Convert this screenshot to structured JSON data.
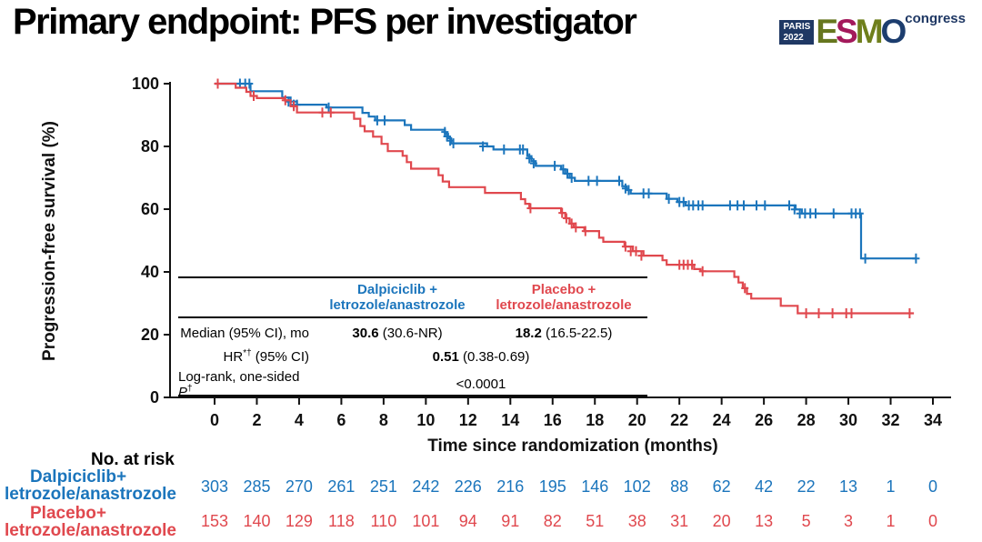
{
  "slide_title": "Primary endpoint: PFS per investigator",
  "logo": {
    "paris_line1": "PARIS",
    "paris_line2": "2022",
    "letters": [
      {
        "ch": "E",
        "color": "#66761F"
      },
      {
        "ch": "S",
        "color": "#A3195B"
      },
      {
        "ch": "M",
        "color": "#6F7F1C"
      },
      {
        "ch": "O",
        "color": "#1C3D6E"
      }
    ],
    "congress": "congress",
    "navy": "#1F3864"
  },
  "chart_data": {
    "type": "line",
    "subtype": "kaplan-meier-step",
    "title": "",
    "xlabel": "Time since randomization (months)",
    "ylabel": "Progression-free survival (%)",
    "xlim": [
      0,
      34
    ],
    "ylim": [
      0,
      100
    ],
    "xticks": [
      0,
      2,
      4,
      6,
      8,
      10,
      12,
      14,
      16,
      18,
      20,
      22,
      24,
      26,
      28,
      30,
      32,
      34
    ],
    "yticks": [
      0,
      20,
      40,
      60,
      80,
      100
    ],
    "grid": false,
    "legend_position": "none",
    "series": [
      {
        "name": "Dalpiciclib + letrozole/anastrozole",
        "color": "#1B75BC",
        "points": [
          [
            0,
            100
          ],
          [
            1.7,
            97.6
          ],
          [
            3.2,
            95.6
          ],
          [
            3.6,
            94.3
          ],
          [
            3.9,
            93.3
          ],
          [
            5.3,
            92.4
          ],
          [
            7.0,
            90.7
          ],
          [
            7.3,
            89.5
          ],
          [
            7.6,
            88.3
          ],
          [
            9.0,
            86.8
          ],
          [
            9.3,
            85.3
          ],
          [
            10.9,
            84.0
          ],
          [
            11.05,
            82.6
          ],
          [
            11.2,
            81.0
          ],
          [
            12.9,
            80.0
          ],
          [
            13.2,
            79.0
          ],
          [
            14.8,
            76.9
          ],
          [
            15.0,
            75.3
          ],
          [
            15.2,
            73.8
          ],
          [
            16.4,
            72.7
          ],
          [
            16.6,
            71.3
          ],
          [
            16.8,
            70.0
          ],
          [
            17.05,
            69.0
          ],
          [
            19.3,
            67.3
          ],
          [
            19.5,
            66.1
          ],
          [
            19.7,
            65.0
          ],
          [
            21.4,
            63.3
          ],
          [
            21.9,
            62.3
          ],
          [
            22.3,
            61.2
          ],
          [
            27.5,
            59.9
          ],
          [
            27.8,
            58.6
          ],
          [
            30.6,
            44.3
          ],
          [
            33.2,
            44.3
          ]
        ],
        "censors": [
          [
            1.2,
            100
          ],
          [
            1.45,
            100
          ],
          [
            1.65,
            100
          ],
          [
            3.5,
            94.3
          ],
          [
            3.75,
            93.3
          ],
          [
            3.9,
            93.3
          ],
          [
            5.4,
            92.4
          ],
          [
            7.7,
            88.3
          ],
          [
            8.05,
            88.3
          ],
          [
            10.9,
            84.6
          ],
          [
            11.0,
            83.2
          ],
          [
            11.15,
            81.8
          ],
          [
            11.3,
            81.0
          ],
          [
            12.7,
            80.0
          ],
          [
            13.7,
            79.0
          ],
          [
            14.45,
            79.0
          ],
          [
            14.6,
            79.0
          ],
          [
            14.9,
            76.2
          ],
          [
            15.1,
            74.6
          ],
          [
            16.1,
            73.8
          ],
          [
            16.5,
            72.7
          ],
          [
            16.7,
            71.3
          ],
          [
            16.9,
            70.0
          ],
          [
            17.7,
            69.0
          ],
          [
            18.1,
            69.0
          ],
          [
            19.15,
            69.0
          ],
          [
            19.45,
            66.6
          ],
          [
            19.6,
            66.1
          ],
          [
            20.3,
            65.0
          ],
          [
            20.55,
            65.0
          ],
          [
            21.5,
            63.3
          ],
          [
            22.0,
            62.3
          ],
          [
            22.2,
            62.3
          ],
          [
            22.45,
            61.2
          ],
          [
            22.65,
            61.2
          ],
          [
            22.9,
            61.2
          ],
          [
            23.1,
            61.2
          ],
          [
            24.4,
            61.2
          ],
          [
            24.75,
            61.2
          ],
          [
            25.05,
            61.2
          ],
          [
            25.65,
            61.2
          ],
          [
            26.05,
            61.2
          ],
          [
            27.2,
            61.2
          ],
          [
            27.45,
            59.9
          ],
          [
            27.7,
            58.6
          ],
          [
            27.95,
            58.6
          ],
          [
            28.2,
            58.6
          ],
          [
            28.45,
            58.6
          ],
          [
            29.3,
            58.6
          ],
          [
            30.15,
            58.6
          ],
          [
            30.35,
            58.6
          ],
          [
            30.55,
            58.6
          ],
          [
            30.8,
            44.3
          ],
          [
            33.2,
            44.3
          ]
        ]
      },
      {
        "name": "Placebo + letrozole/anastrozole",
        "color": "#E0484E",
        "points": [
          [
            0,
            100
          ],
          [
            1.0,
            98.7
          ],
          [
            1.5,
            97.4
          ],
          [
            1.7,
            96.1
          ],
          [
            2.0,
            95.4
          ],
          [
            3.3,
            94.7
          ],
          [
            3.6,
            92.8
          ],
          [
            3.9,
            90.8
          ],
          [
            6.6,
            88.8
          ],
          [
            6.9,
            86.5
          ],
          [
            7.1,
            84.8
          ],
          [
            7.5,
            83.1
          ],
          [
            7.9,
            80.8
          ],
          [
            8.2,
            78.5
          ],
          [
            8.9,
            77.0
          ],
          [
            9.1,
            75.0
          ],
          [
            9.3,
            72.9
          ],
          [
            10.6,
            70.8
          ],
          [
            10.8,
            68.8
          ],
          [
            11.1,
            67.0
          ],
          [
            12.8,
            65.2
          ],
          [
            14.5,
            63.2
          ],
          [
            14.7,
            61.7
          ],
          [
            14.9,
            60.3
          ],
          [
            16.4,
            58.8
          ],
          [
            16.6,
            57.1
          ],
          [
            16.8,
            55.4
          ],
          [
            17.0,
            54.2
          ],
          [
            17.5,
            53.0
          ],
          [
            18.2,
            50.9
          ],
          [
            18.4,
            49.6
          ],
          [
            19.4,
            48.1
          ],
          [
            19.8,
            46.6
          ],
          [
            20.3,
            45.2
          ],
          [
            21.2,
            43.7
          ],
          [
            21.4,
            42.3
          ],
          [
            22.7,
            40.9
          ],
          [
            23.0,
            40.2
          ],
          [
            24.6,
            38.4
          ],
          [
            24.8,
            36.6
          ],
          [
            25.0,
            34.8
          ],
          [
            25.2,
            33.0
          ],
          [
            25.4,
            31.5
          ],
          [
            26.8,
            29.2
          ],
          [
            27.6,
            26.8
          ],
          [
            33.1,
            26.8
          ]
        ],
        "censors": [
          [
            0.15,
            100
          ],
          [
            1.85,
            96.1
          ],
          [
            3.35,
            94.7
          ],
          [
            3.75,
            92.8
          ],
          [
            5.1,
            90.8
          ],
          [
            5.5,
            90.8
          ],
          [
            14.95,
            60.3
          ],
          [
            16.45,
            58.8
          ],
          [
            16.65,
            57.1
          ],
          [
            16.9,
            55.4
          ],
          [
            17.1,
            54.2
          ],
          [
            17.55,
            53.0
          ],
          [
            19.45,
            48.1
          ],
          [
            19.7,
            46.6
          ],
          [
            19.95,
            46.6
          ],
          [
            20.2,
            45.2
          ],
          [
            22.0,
            42.3
          ],
          [
            22.2,
            42.3
          ],
          [
            22.4,
            42.3
          ],
          [
            22.6,
            42.3
          ],
          [
            23.1,
            40.2
          ],
          [
            25.1,
            34.8
          ],
          [
            28.0,
            26.8
          ],
          [
            28.6,
            26.8
          ],
          [
            29.25,
            26.8
          ],
          [
            29.9,
            26.8
          ],
          [
            30.15,
            26.8
          ],
          [
            32.9,
            26.8
          ]
        ]
      }
    ]
  },
  "inset_table": {
    "col_headers": [
      {
        "line1": "Dalpiciclib +",
        "line2": "letrozole/anastrozole",
        "color": "#1B75BC"
      },
      {
        "line1": "Placebo +",
        "line2": "letrozole/anastrozole",
        "color": "#E0484E"
      }
    ],
    "median_row": {
      "label": "Median (95% CI), mo",
      "dalpiciclib_bold": "30.6",
      "dalpiciclib_rest": " (30.6-NR)",
      "placebo_bold": "18.2",
      "placebo_rest": " (16.5-22.5)"
    },
    "hr_row": {
      "label_pre": "HR",
      "label_sup": "*†",
      "label_post": " (95% CI)",
      "value_bold": "0.51",
      "value_rest": " (0.38-0.69)"
    },
    "logrank_row": {
      "label_pre": "Log-rank, one-sided ",
      "label_italic": "P",
      "label_sup": "†",
      "value": "<0.0001"
    }
  },
  "risk_table": {
    "header": "No. at risk",
    "rows": [
      {
        "label_line1": "Dalpiciclib+",
        "label_line2": "letrozole/anastrozole",
        "color": "#1B75BC",
        "counts": [
          303,
          285,
          270,
          261,
          251,
          242,
          226,
          216,
          195,
          146,
          102,
          88,
          62,
          42,
          22,
          13,
          1,
          0
        ]
      },
      {
        "label_line1": "Placebo+",
        "label_line2": "letrozole/anastrozole",
        "color": "#E0484E",
        "counts": [
          153,
          140,
          129,
          118,
          110,
          101,
          94,
          91,
          82,
          51,
          38,
          31,
          20,
          13,
          5,
          3,
          1,
          0
        ]
      }
    ]
  }
}
